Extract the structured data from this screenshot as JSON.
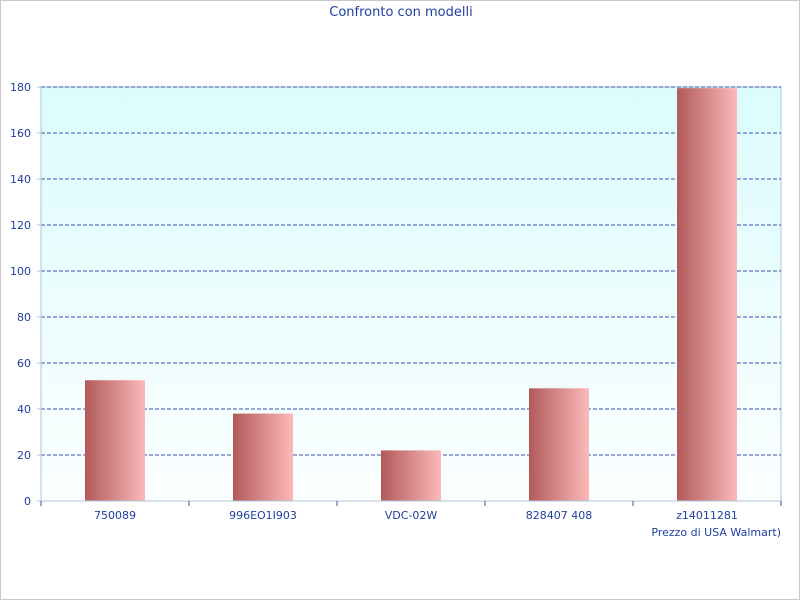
{
  "chart_data": {
    "type": "bar",
    "title": "Confronto con modelli",
    "xlabel": "Prezzo di USA Walmart)",
    "ylabel": "",
    "categories": [
      "750089",
      "996EO1I903",
      "VDC-02W",
      "828407 408",
      "z14011281"
    ],
    "values": [
      52.5,
      38,
      22,
      49,
      179.5
    ],
    "ylim": [
      0,
      180
    ],
    "yticks": [
      0,
      20,
      40,
      60,
      80,
      100,
      120,
      140,
      160,
      180
    ],
    "grid": true,
    "colors": {
      "text": "#1f3f9f",
      "grid": "#3a55a8",
      "axis": "#b0c4de",
      "plot_top": "#dcfcfc",
      "plot_bottom": "#fbfeff",
      "bar_dark": "#b25a5a",
      "bar_light": "#fcb9b9"
    }
  }
}
